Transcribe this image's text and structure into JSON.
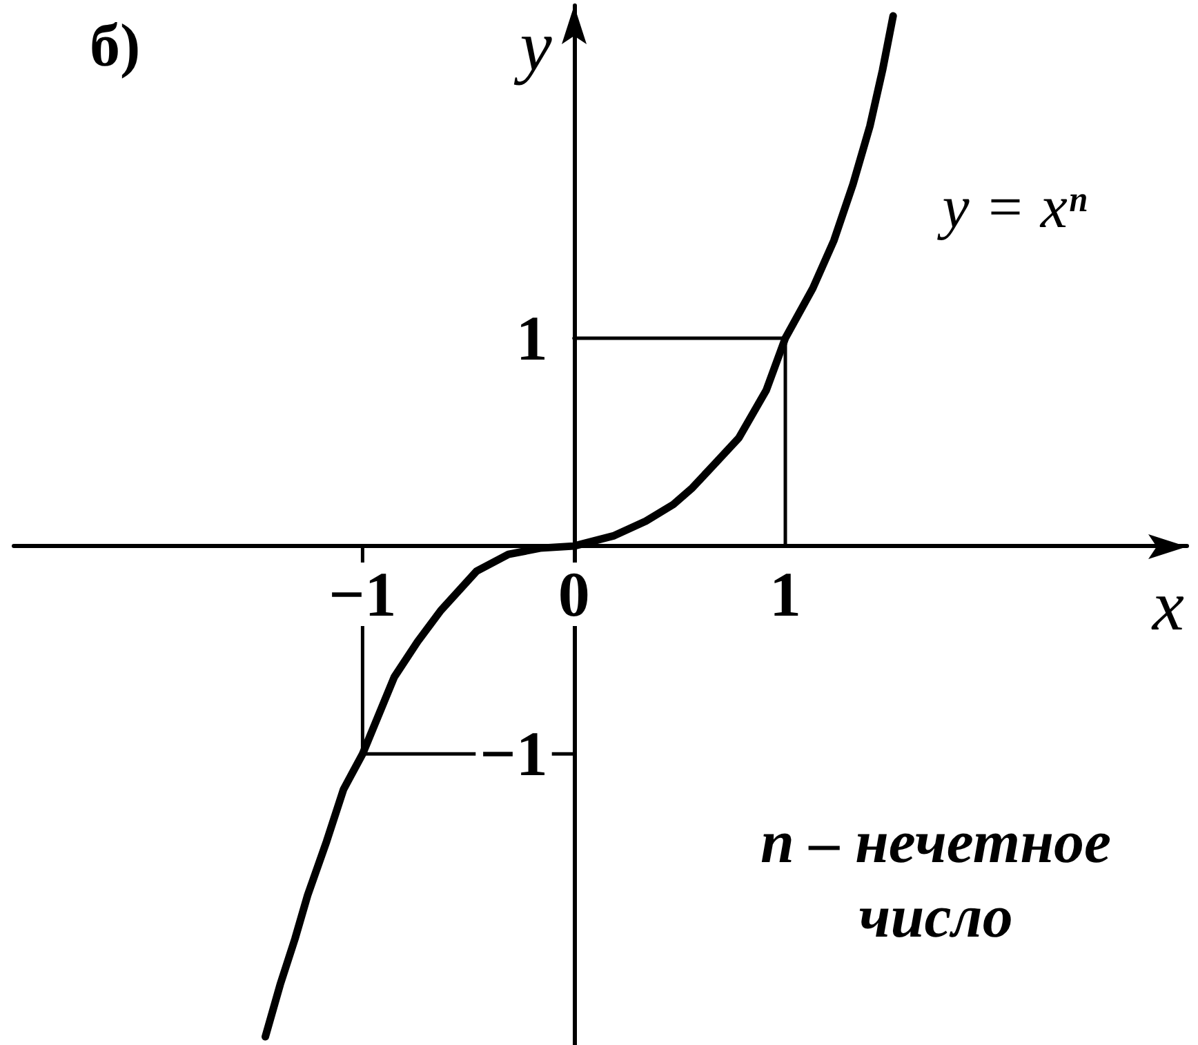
{
  "chart_data": {
    "type": "line",
    "title": "б)",
    "xlabel": "x",
    "ylabel": "y",
    "series": [
      {
        "color": "#000000",
        "x": [
          -1.46,
          -1.39,
          -1.32,
          -1.26,
          -1.17,
          -1.09,
          -1,
          -0.85,
          -0.74,
          -0.63,
          -0.46,
          -0.31,
          -0.16,
          0,
          0.19,
          0.34,
          0.47,
          0.56,
          0.67,
          0.78,
          0.91,
          1,
          1.13,
          1.23,
          1.32,
          1.4,
          1.46,
          1.51
        ],
        "values": [
          -2.36,
          -2.11,
          -1.89,
          -1.68,
          -1.42,
          -1.17,
          -1,
          -0.63,
          -0.46,
          -0.31,
          -0.12,
          -0.04,
          -0.01,
          0,
          0.05,
          0.12,
          0.2,
          0.28,
          0.4,
          0.52,
          0.75,
          1,
          1.24,
          1.47,
          1.74,
          2.02,
          2.29,
          2.55
        ]
      },
      {
        "color": "#000000",
        "x": [
          0,
          1,
          1
        ],
        "values": [
          1,
          1,
          0
        ]
      },
      {
        "color": "#000000",
        "x": [
          0,
          -1,
          -1
        ],
        "values": [
          -1,
          -1,
          0
        ]
      }
    ],
    "xlim": [
      -2.65,
      2.9
    ],
    "ylim": [
      -2.4,
      2.6
    ],
    "xticks": [
      {
        "value": -1,
        "label": "−1"
      },
      0,
      1
    ],
    "yticks": [
      {
        "value": -1,
        "label": "−1"
      },
      1
    ],
    "annotations": [
      "y = xⁿ",
      "n – нечетное число"
    ],
    "marker": "none",
    "line_style": "solid",
    "grid": false
  }
}
